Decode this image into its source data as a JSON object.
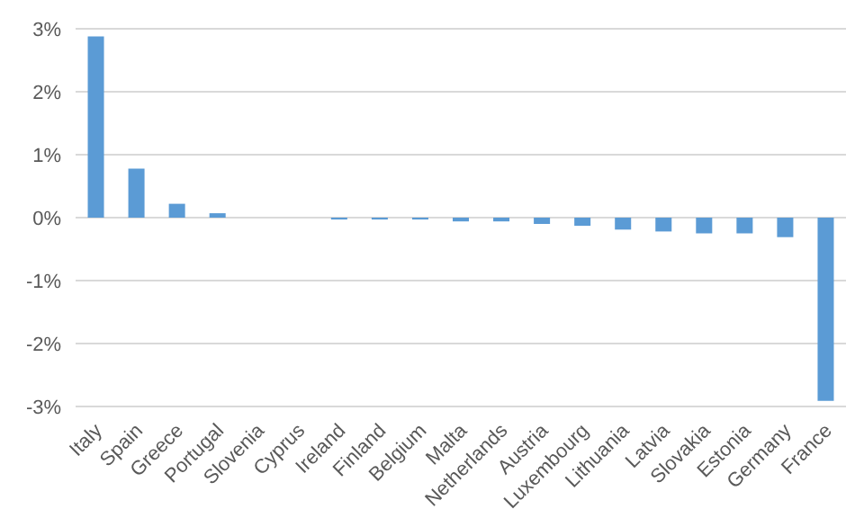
{
  "chart_data": {
    "type": "bar",
    "categories": [
      "Italy",
      "Spain",
      "Greece",
      "Portugal",
      "Slovenia",
      "Cyprus",
      "Ireland",
      "Finland",
      "Belgium",
      "Malta",
      "Netherlands",
      "Austria",
      "Luxembourg",
      "Lithuania",
      "Latvia",
      "Slovakia",
      "Estonia",
      "Germany",
      "France"
    ],
    "values": [
      2.88,
      0.78,
      0.22,
      0.07,
      0,
      0,
      -0.03,
      -0.03,
      -0.03,
      -0.06,
      -0.06,
      -0.1,
      -0.13,
      -0.19,
      -0.22,
      -0.25,
      -0.25,
      -0.31,
      -2.91
    ],
    "color": "#5b9bd5",
    "ylim": [
      -3,
      3
    ],
    "yticks": [
      {
        "value": -3,
        "label": "-3%"
      },
      {
        "value": -2,
        "label": "-2%"
      },
      {
        "value": -1,
        "label": "-1%"
      },
      {
        "value": 0,
        "label": "0%"
      },
      {
        "value": 1,
        "label": "1%"
      },
      {
        "value": 2,
        "label": "2%"
      },
      {
        "value": 3,
        "label": "3%"
      }
    ],
    "grid": "y"
  }
}
